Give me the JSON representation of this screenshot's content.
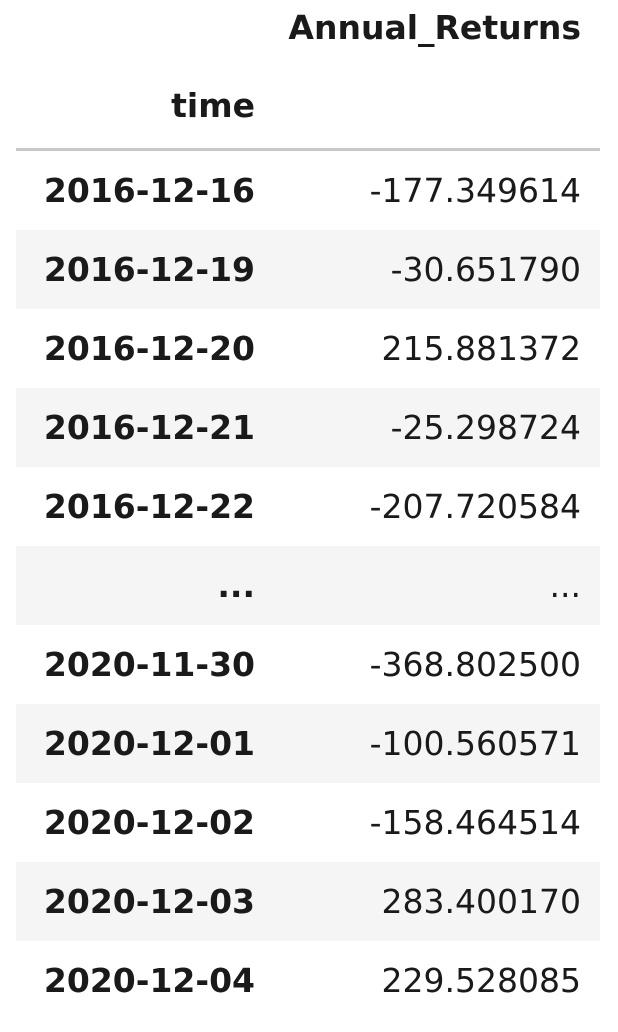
{
  "table": {
    "column_header": "Annual_Returns",
    "index_name": "time",
    "rows": [
      {
        "index": "2016-12-16",
        "value": "-177.349614"
      },
      {
        "index": "2016-12-19",
        "value": "-30.651790"
      },
      {
        "index": "2016-12-20",
        "value": "215.881372"
      },
      {
        "index": "2016-12-21",
        "value": "-25.298724"
      },
      {
        "index": "2016-12-22",
        "value": "-207.720584"
      },
      {
        "index": "...",
        "value": "..."
      },
      {
        "index": "2020-11-30",
        "value": "-368.802500"
      },
      {
        "index": "2020-12-01",
        "value": "-100.560571"
      },
      {
        "index": "2020-12-02",
        "value": "-158.464514"
      },
      {
        "index": "2020-12-03",
        "value": "283.400170"
      },
      {
        "index": "2020-12-04",
        "value": "229.528085"
      }
    ]
  }
}
